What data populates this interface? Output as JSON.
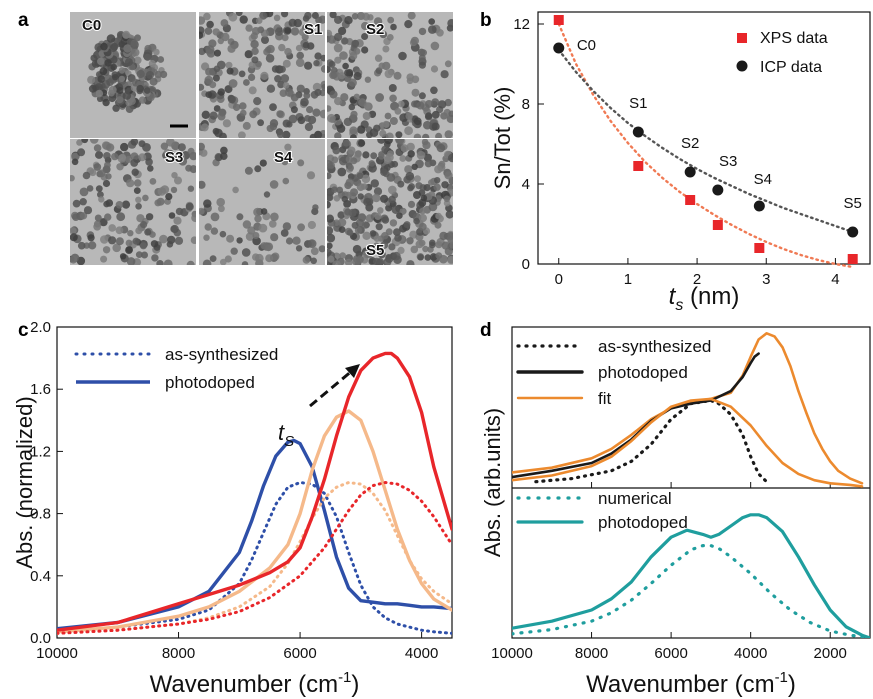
{
  "panel_letters": {
    "a": "a",
    "b": "b",
    "c": "c",
    "d": "d"
  },
  "micrographs": [
    {
      "label": "C0"
    },
    {
      "label": "S1"
    },
    {
      "label": "S2"
    },
    {
      "label": "S3"
    },
    {
      "label": "S4"
    },
    {
      "label": "S5"
    }
  ],
  "chart_data": [
    {
      "panel": "b",
      "type": "scatter",
      "xlabel_main": "t",
      "xlabel_sub": "s",
      "xlabel_unit": " (nm)",
      "ylabel": "Sn/Tot (%)",
      "xlim": [
        -0.3,
        4.5
      ],
      "ylim": [
        0,
        12.6
      ],
      "xticks": [
        0,
        1,
        2,
        3,
        4
      ],
      "yticks": [
        0,
        4,
        8,
        12
      ],
      "legend_position": "top-right",
      "series": [
        {
          "name": "XPS data",
          "marker": "square",
          "color": "#e8262a",
          "x": [
            0,
            1.15,
            1.9,
            2.3,
            2.9,
            4.25
          ],
          "y": [
            12.2,
            4.9,
            3.2,
            1.95,
            0.8,
            0.25
          ]
        },
        {
          "name": "ICP data",
          "marker": "circle",
          "color": "#1a1a1a",
          "x": [
            0,
            1.15,
            1.9,
            2.3,
            2.9,
            4.25
          ],
          "y": [
            10.8,
            6.6,
            4.6,
            3.7,
            2.9,
            1.6
          ]
        }
      ],
      "fits": [
        {
          "color": "#f07a54",
          "x": [
            0,
            0.25,
            0.5,
            0.75,
            1,
            1.25,
            1.5,
            1.75,
            2,
            2.25,
            2.5,
            2.75,
            3,
            3.25,
            3.5,
            3.75,
            4,
            4.25
          ],
          "y": [
            12.0,
            10.0,
            8.45,
            7.15,
            6.05,
            5.1,
            4.3,
            3.6,
            3.0,
            2.45,
            1.95,
            1.5,
            1.1,
            0.75,
            0.45,
            0.2,
            0.0,
            -0.15
          ]
        },
        {
          "color": "#555555",
          "x": [
            0,
            0.25,
            0.5,
            0.75,
            1,
            1.25,
            1.5,
            1.75,
            2,
            2.25,
            2.5,
            2.75,
            3,
            3.25,
            3.5,
            3.75,
            4,
            4.25
          ],
          "y": [
            10.7,
            9.6,
            8.65,
            7.8,
            7.05,
            6.4,
            5.8,
            5.25,
            4.75,
            4.3,
            3.9,
            3.5,
            3.15,
            2.8,
            2.5,
            2.2,
            1.9,
            1.6
          ]
        }
      ],
      "annotations": [
        {
          "text": "C0",
          "x": 0.4,
          "y": 10.7
        },
        {
          "text": "S1",
          "x": 1.15,
          "y": 7.8
        },
        {
          "text": "S2",
          "x": 1.9,
          "y": 5.8
        },
        {
          "text": "S3",
          "x": 2.45,
          "y": 4.9
        },
        {
          "text": "S4",
          "x": 2.95,
          "y": 4.0
        },
        {
          "text": "S5",
          "x": 4.25,
          "y": 2.8
        }
      ]
    },
    {
      "panel": "c",
      "type": "line",
      "xlabel_main": "Wavenumber (cm",
      "xlabel_sup": "-1",
      "xlabel_end": ")",
      "ylabel": "Abs. (normalized)",
      "xlim": [
        10000,
        3500
      ],
      "ylim": [
        0,
        2.0
      ],
      "xticks": [
        10000,
        8000,
        6000,
        4000
      ],
      "yticks": [
        0.0,
        0.4,
        0.8,
        1.2,
        1.6,
        2.0
      ],
      "legend_position": "top-left",
      "legend": [
        {
          "name": "as-synthesized",
          "style": "dotted",
          "color": "#2e4fa8"
        },
        {
          "name": "photodoped",
          "style": "solid",
          "color": "#2e4fa8"
        }
      ],
      "arrow_label_main": "t",
      "arrow_label_sub": "S",
      "series": [
        {
          "color": "#2e4fa8",
          "style": "dotted",
          "x": [
            10000,
            9000,
            8000,
            7500,
            7000,
            6800,
            6600,
            6400,
            6200,
            6000,
            5800,
            5600,
            5400,
            5200,
            5000,
            4800,
            4600,
            4400,
            4200,
            4000,
            3800,
            3500
          ],
          "y": [
            0.04,
            0.07,
            0.12,
            0.18,
            0.35,
            0.5,
            0.68,
            0.86,
            0.97,
            1.0,
            0.99,
            0.93,
            0.78,
            0.55,
            0.34,
            0.2,
            0.13,
            0.09,
            0.07,
            0.05,
            0.04,
            0.03
          ]
        },
        {
          "color": "#2e4fa8",
          "style": "solid",
          "x": [
            10000,
            9000,
            8000,
            7500,
            7000,
            6800,
            6600,
            6400,
            6200,
            6100,
            6000,
            5800,
            5600,
            5400,
            5200,
            5000,
            4800,
            4600,
            4400,
            4200,
            4000,
            3800,
            3500
          ],
          "y": [
            0.06,
            0.1,
            0.2,
            0.3,
            0.55,
            0.75,
            0.98,
            1.17,
            1.26,
            1.27,
            1.25,
            1.1,
            0.82,
            0.52,
            0.32,
            0.24,
            0.23,
            0.22,
            0.22,
            0.21,
            0.2,
            0.2,
            0.19
          ]
        },
        {
          "color": "#f5b98a",
          "style": "dotted",
          "x": [
            10000,
            9000,
            8000,
            7500,
            7000,
            6500,
            6200,
            6000,
            5800,
            5600,
            5400,
            5200,
            5000,
            4800,
            4600,
            4400,
            4200,
            4000,
            3800,
            3500
          ],
          "y": [
            0.03,
            0.05,
            0.09,
            0.13,
            0.2,
            0.33,
            0.48,
            0.62,
            0.77,
            0.9,
            0.97,
            1.0,
            0.99,
            0.93,
            0.82,
            0.66,
            0.5,
            0.38,
            0.3,
            0.22
          ]
        },
        {
          "color": "#f5b98a",
          "style": "solid",
          "x": [
            10000,
            9000,
            8000,
            7500,
            7000,
            6500,
            6200,
            6000,
            5800,
            5600,
            5400,
            5200,
            5000,
            4900,
            4800,
            4600,
            4400,
            4200,
            4000,
            3800,
            3500
          ],
          "y": [
            0.04,
            0.07,
            0.14,
            0.2,
            0.3,
            0.45,
            0.6,
            0.8,
            1.08,
            1.3,
            1.42,
            1.46,
            1.4,
            1.3,
            1.2,
            0.95,
            0.7,
            0.5,
            0.35,
            0.25,
            0.18
          ]
        },
        {
          "color": "#e8262a",
          "style": "dotted",
          "x": [
            10000,
            9000,
            8000,
            7500,
            7000,
            6500,
            6000,
            5600,
            5400,
            5200,
            5000,
            4800,
            4600,
            4400,
            4200,
            4000,
            3800,
            3500
          ],
          "y": [
            0.03,
            0.05,
            0.09,
            0.12,
            0.17,
            0.26,
            0.4,
            0.58,
            0.7,
            0.82,
            0.92,
            0.98,
            1.0,
            0.99,
            0.95,
            0.88,
            0.78,
            0.6
          ]
        },
        {
          "color": "#e8262a",
          "style": "solid",
          "x": [
            10000,
            9000,
            8000,
            7500,
            7000,
            6500,
            6200,
            6000,
            5800,
            5600,
            5400,
            5200,
            5000,
            4800,
            4600,
            4500,
            4400,
            4200,
            4000,
            3800,
            3500
          ],
          "y": [
            0.05,
            0.1,
            0.22,
            0.28,
            0.34,
            0.42,
            0.49,
            0.58,
            0.78,
            1.02,
            1.3,
            1.55,
            1.72,
            1.8,
            1.83,
            1.83,
            1.8,
            1.68,
            1.45,
            1.1,
            0.7
          ]
        }
      ]
    },
    {
      "panel": "d",
      "type": "line",
      "xlabel_main": "Wavenumber (cm",
      "xlabel_sup": "-1",
      "xlabel_end": ")",
      "ylabel": "Abs. (arb.units)",
      "xlim": [
        10000,
        1000
      ],
      "xticks": [
        10000,
        8000,
        6000,
        4000,
        2000
      ],
      "top_legend": [
        {
          "name": "as-synthesized",
          "style": "dotted",
          "color": "#1a1a1a"
        },
        {
          "name": "photodoped",
          "style": "solid",
          "color": "#1a1a1a"
        },
        {
          "name": "fit",
          "style": "solid",
          "color": "#ec8a2e"
        }
      ],
      "bottom_legend": [
        {
          "name": "numerical",
          "style": "dotted",
          "color": "#1f9e9e"
        },
        {
          "name": "photodoped",
          "style": "solid",
          "color": "#1f9e9e"
        }
      ],
      "top_series": [
        {
          "color": "#1a1a1a",
          "style": "dotted",
          "x": [
            9400,
            8500,
            7500,
            7000,
            6500,
            6000,
            5500,
            5000,
            4800,
            4500,
            4200,
            4000,
            3800,
            3600
          ],
          "y": [
            0.04,
            0.06,
            0.11,
            0.17,
            0.28,
            0.44,
            0.54,
            0.56,
            0.54,
            0.47,
            0.34,
            0.2,
            0.09,
            0.04
          ]
        },
        {
          "color": "#ec8a2e",
          "style": "solid",
          "x": [
            10000,
            9000,
            8000,
            7500,
            7000,
            6500,
            6000,
            5500,
            5000,
            4500,
            4200,
            4000,
            3800,
            3600,
            3400,
            3200,
            3000,
            2800,
            2600,
            2400,
            2200,
            2000,
            1800,
            1500,
            1200
          ],
          "y": [
            0.1,
            0.13,
            0.19,
            0.25,
            0.34,
            0.44,
            0.51,
            0.55,
            0.57,
            0.61,
            0.72,
            0.84,
            0.95,
            0.99,
            0.97,
            0.9,
            0.78,
            0.62,
            0.48,
            0.35,
            0.25,
            0.17,
            0.11,
            0.06,
            0.03
          ]
        },
        {
          "color": "#1a1a1a",
          "style": "solid",
          "x": [
            10000,
            9000,
            8000,
            7500,
            7000,
            6500,
            6000,
            5500,
            5000,
            4500,
            4200,
            4000,
            3900,
            3800
          ],
          "y": [
            0.07,
            0.11,
            0.16,
            0.22,
            0.31,
            0.43,
            0.51,
            0.54,
            0.56,
            0.62,
            0.71,
            0.8,
            0.84,
            0.86
          ]
        },
        {
          "color": "#ec8a2e",
          "style": "solid",
          "x": [
            10000,
            9000,
            8000,
            7500,
            7000,
            6500,
            6000,
            5500,
            5000,
            4500,
            4000,
            3600,
            3200,
            2800,
            2400,
            2000,
            1500,
            1200
          ],
          "y": [
            0.05,
            0.08,
            0.14,
            0.2,
            0.3,
            0.42,
            0.52,
            0.56,
            0.57,
            0.52,
            0.4,
            0.27,
            0.16,
            0.09,
            0.05,
            0.03,
            0.02,
            0.01
          ]
        }
      ],
      "bottom_series": [
        {
          "color": "#1f9e9e",
          "style": "dotted",
          "x": [
            10000,
            9000,
            8000,
            7500,
            7000,
            6500,
            6000,
            5500,
            5200,
            5000,
            4800,
            4500,
            4000,
            3500,
            3000,
            2500,
            2000,
            1500,
            1000
          ],
          "y": [
            0.03,
            0.06,
            0.12,
            0.18,
            0.27,
            0.39,
            0.52,
            0.63,
            0.66,
            0.66,
            0.64,
            0.58,
            0.46,
            0.32,
            0.2,
            0.11,
            0.05,
            0.02,
            0.0
          ]
        },
        {
          "color": "#1f9e9e",
          "style": "solid",
          "x": [
            10000,
            9000,
            8000,
            7500,
            7000,
            6500,
            6000,
            5600,
            5200,
            5000,
            4800,
            4500,
            4200,
            4000,
            3800,
            3600,
            3200,
            2800,
            2400,
            2000,
            1600,
            1200,
            1000
          ],
          "y": [
            0.07,
            0.12,
            0.2,
            0.28,
            0.4,
            0.58,
            0.72,
            0.77,
            0.74,
            0.72,
            0.74,
            0.8,
            0.86,
            0.88,
            0.88,
            0.86,
            0.76,
            0.58,
            0.38,
            0.2,
            0.08,
            0.02,
            0.0
          ]
        }
      ]
    }
  ]
}
